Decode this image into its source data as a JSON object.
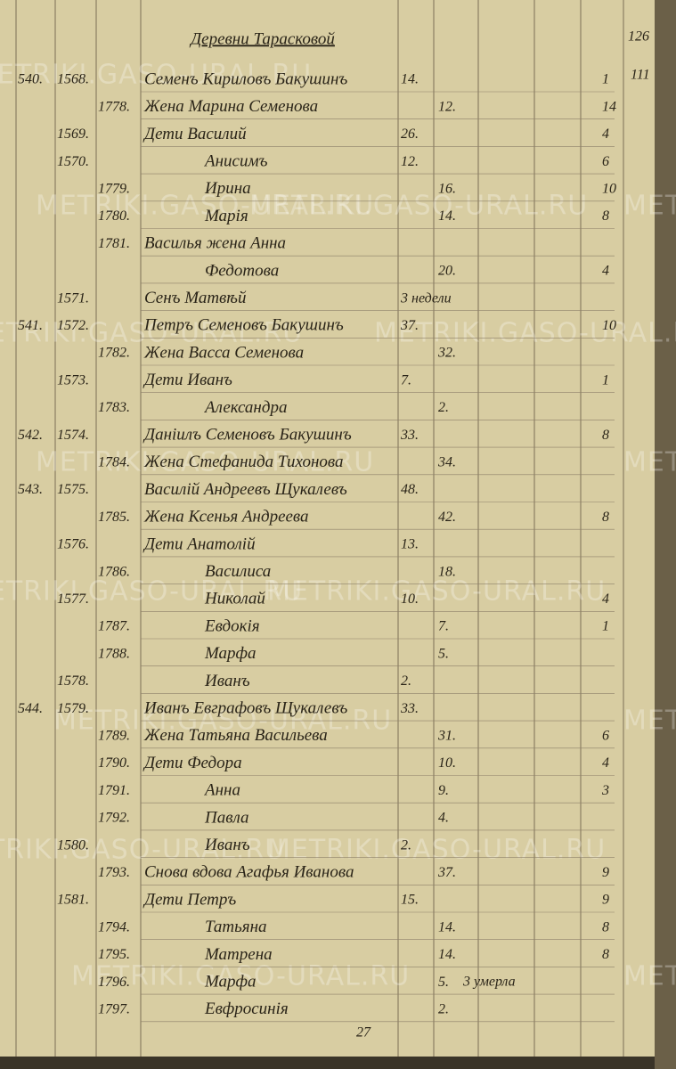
{
  "header": {
    "title": "Деревни Тарасковой",
    "page_number": "126",
    "page_number_2": "111"
  },
  "watermark": "METRIKI.GASO-URAL.RU",
  "rows": [
    {
      "household": "540.",
      "male_no": "1568.",
      "name": "Семенъ Кириловъ Бакушинъ",
      "male_age": "14.",
      "right": "1"
    },
    {
      "female_no": "1778.",
      "name": "Жена Марина Семенова",
      "female_age": "12.",
      "right": "14"
    },
    {
      "male_no": "1569.",
      "name": "Дети Василий",
      "male_age": "26.",
      "right": "4"
    },
    {
      "male_no": "1570.",
      "name": "Анисимъ",
      "male_age": "12.",
      "right": "6"
    },
    {
      "female_no": "1779.",
      "name": "Ирина",
      "female_age": "16.",
      "right": "10"
    },
    {
      "female_no": "1780.",
      "name": "Марiя",
      "female_age": "14.",
      "right": "8"
    },
    {
      "female_no": "1781.",
      "name": "Василья жена Анна"
    },
    {
      "name": "Федотова",
      "female_age": "20.",
      "right": "4"
    },
    {
      "male_no": "1571.",
      "name": "Сенъ Матвѣй",
      "male_age": "3 недели"
    },
    {
      "household": "541.",
      "male_no": "1572.",
      "name": "Петръ Семеновъ Бакушинъ",
      "male_age": "37.",
      "right": "10"
    },
    {
      "female_no": "1782.",
      "name": "Жена Васса Семенова",
      "female_age": "32."
    },
    {
      "male_no": "1573.",
      "name": "Дети Иванъ",
      "male_age": "7.",
      "right": "1"
    },
    {
      "female_no": "1783.",
      "name": "Александра",
      "female_age": "2."
    },
    {
      "household": "542.",
      "male_no": "1574.",
      "name": "Данiилъ Семеновъ Бакушинъ",
      "male_age": "33.",
      "right": "8"
    },
    {
      "female_no": "1784.",
      "name": "Жена Стефанида Тихонова",
      "female_age": "34."
    },
    {
      "household": "543.",
      "male_no": "1575.",
      "name": "Василiй Андреевъ Щукалевъ",
      "male_age": "48."
    },
    {
      "female_no": "1785.",
      "name": "Жена Ксенья Андреева",
      "female_age": "42.",
      "right": "8"
    },
    {
      "male_no": "1576.",
      "name": "Дети Анатолiй",
      "male_age": "13."
    },
    {
      "female_no": "1786.",
      "name": "Василиса",
      "female_age": "18."
    },
    {
      "male_no": "1577.",
      "name": "Николай",
      "male_age": "10.",
      "right": "4"
    },
    {
      "female_no": "1787.",
      "name": "Евдокiя",
      "female_age": "7.",
      "right": "1"
    },
    {
      "female_no": "1788.",
      "name": "Марфа",
      "female_age": "5."
    },
    {
      "male_no": "1578.",
      "name": "Иванъ",
      "male_age": "2."
    },
    {
      "household": "544.",
      "male_no": "1579.",
      "name": "Иванъ Евграфовъ Щукалевъ",
      "male_age": "33."
    },
    {
      "female_no": "1789.",
      "name": "Жена Татьяна Васильева",
      "female_age": "31.",
      "right": "6"
    },
    {
      "female_no": "1790.",
      "name": "Дети Федора",
      "female_age": "10.",
      "right": "4"
    },
    {
      "female_no": "1791.",
      "name": "Анна",
      "female_age": "9.",
      "right": "3"
    },
    {
      "female_no": "1792.",
      "name": "Павла",
      "female_age": "4."
    },
    {
      "male_no": "1580.",
      "name": "Иванъ",
      "male_age": "2."
    },
    {
      "female_no": "1793.",
      "name": "Снова вдова Агафья Иванова",
      "female_age": "37.",
      "right": "9"
    },
    {
      "male_no": "1581.",
      "name": "Дети Петръ",
      "male_age": "15.",
      "right": "9"
    },
    {
      "female_no": "1794.",
      "name": "Татьяна",
      "female_age": "14.",
      "right": "8"
    },
    {
      "female_no": "1795.",
      "name": "Матрена",
      "female_age": "14.",
      "right": "8"
    },
    {
      "female_no": "1796.",
      "name": "Марфа",
      "female_age": "5."
    },
    {
      "female_no": "1797.",
      "name": "Евфросинiя",
      "female_age": "2."
    }
  ],
  "note": "3 умерла",
  "footer_mark": "27"
}
